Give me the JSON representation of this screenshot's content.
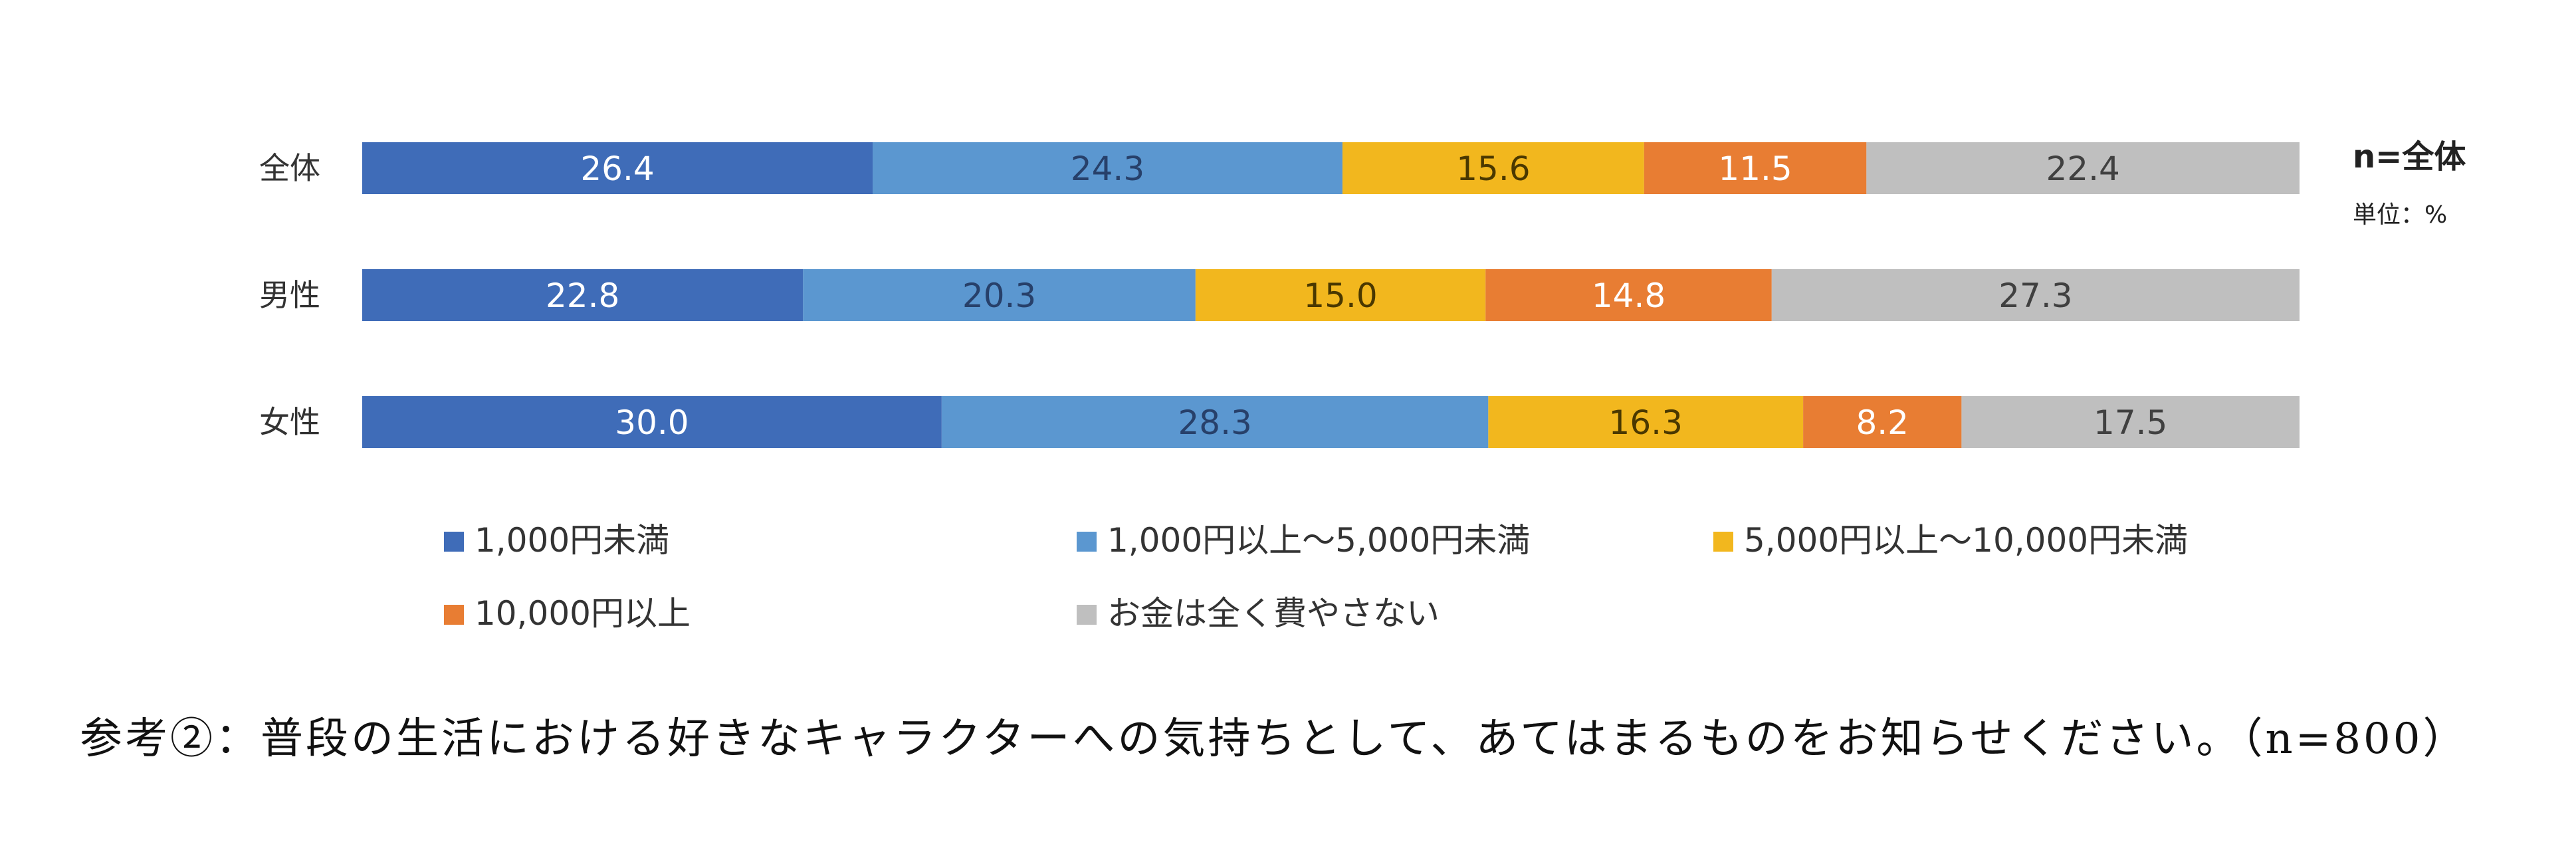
{
  "chart_data": {
    "type": "bar",
    "orientation": "horizontal",
    "stacked": true,
    "percent_stacked": true,
    "categories": [
      "全体",
      "男性",
      "女性"
    ],
    "series": [
      {
        "name": "1,000円未満",
        "color": "#3F6CB8",
        "label_color": "#FFFFFF",
        "values": [
          26.4,
          22.8,
          30.0
        ]
      },
      {
        "name": "1,000円以上～5,000円未満",
        "color": "#5B97D0",
        "label_color": "#27406A",
        "values": [
          24.3,
          20.3,
          28.3
        ]
      },
      {
        "name": "5,000円以上～10,000円未満",
        "color": "#F2B71E",
        "label_color": "#4A3800",
        "values": [
          15.6,
          15.0,
          16.3
        ]
      },
      {
        "name": "10,000円以上",
        "color": "#E87D33",
        "label_color": "#FFFFFF",
        "values": [
          11.5,
          14.8,
          8.2
        ]
      },
      {
        "name": "お金は全く費やさない",
        "color": "#BFBFBF",
        "label_color": "#404040",
        "values": [
          22.4,
          27.3,
          17.5
        ]
      }
    ],
    "value_labels": [
      [
        "26.4",
        "24.3",
        "15.6",
        "11.5",
        "22.4"
      ],
      [
        "22.8",
        "20.3",
        "15.0",
        "14.8",
        "27.3"
      ],
      [
        "30.0",
        "28.3",
        "16.3",
        "8.2",
        "17.5"
      ]
    ],
    "side_note": "n=全体",
    "unit_note": "単位：%",
    "legend_position": "bottom",
    "grid": false
  },
  "caption": "参考②：普段の生活における好きなキャラクターへの気持ちとして、あてはまるものをお知らせください。（n=800）"
}
